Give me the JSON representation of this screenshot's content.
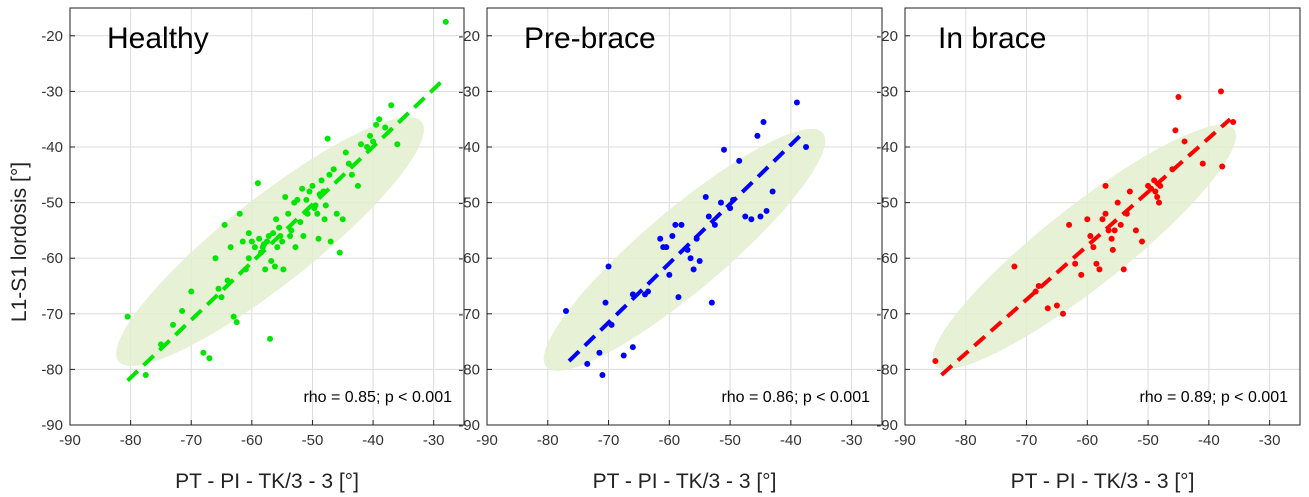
{
  "chart_data": [
    {
      "type": "scatter",
      "title": "Healthy",
      "xlabel": "PT - PI - TK/3 - 3 [°]",
      "ylabel": "L1-S1 lordosis [°]",
      "xlim": [
        -90,
        -25
      ],
      "ylim": [
        -90,
        -15
      ],
      "xticks": [
        -90,
        -80,
        -70,
        -60,
        -50,
        -40,
        -30
      ],
      "yticks": [
        -90,
        -80,
        -70,
        -60,
        -50,
        -40,
        -30,
        -20
      ],
      "grid": true,
      "annotation": "rho = 0.85; p < 0.001",
      "colors": {
        "points": "#00e600",
        "fit": "#00e600",
        "ellipse": "#e2efcf"
      },
      "fit_line": {
        "x": [
          -80.5,
          -28
        ],
        "y": [
          -82,
          -27.5
        ]
      },
      "ellipse": {
        "cx": -57,
        "cy": -57,
        "rx": 33,
        "ry": 7.5,
        "angle_deg": 41
      },
      "points": {
        "x": [
          -80.5,
          -77.5,
          -75,
          -73,
          -71.5,
          -70,
          -68,
          -67,
          -66,
          -65.5,
          -65,
          -64.5,
          -64,
          -63.5,
          -63,
          -62.5,
          -62,
          -61.5,
          -61,
          -60.5,
          -60.5,
          -60,
          -59.5,
          -59,
          -58.8,
          -58.5,
          -58.2,
          -58,
          -57.8,
          -57.5,
          -57.2,
          -57,
          -56.8,
          -56.5,
          -56.2,
          -56,
          -55.8,
          -55.5,
          -55.3,
          -55,
          -54.8,
          -54.5,
          -54,
          -53.7,
          -53.5,
          -53,
          -52.8,
          -52.5,
          -52,
          -51.7,
          -51.5,
          -51,
          -50.8,
          -50.5,
          -50,
          -49.7,
          -49.5,
          -49.2,
          -49,
          -48.8,
          -48.5,
          -48.2,
          -48,
          -47.8,
          -47.5,
          -47.2,
          -47,
          -46.5,
          -46,
          -45.5,
          -45,
          -44.5,
          -44,
          -43.5,
          -42.5,
          -42,
          -41,
          -40.5,
          -40,
          -39.5,
          -39,
          -38,
          -37,
          -36,
          -28
        ],
        "y": [
          -70.5,
          -81,
          -75.5,
          -72,
          -69.5,
          -66,
          -77,
          -78,
          -60,
          -65.5,
          -67,
          -54,
          -64,
          -58,
          -70.5,
          -71.5,
          -52,
          -57,
          -62,
          -60,
          -55.5,
          -57,
          -58,
          -46.5,
          -56.5,
          -59,
          -58,
          -57.5,
          -62,
          -57,
          -56,
          -74.5,
          -60.5,
          -55.5,
          -61.5,
          -53,
          -58,
          -54.5,
          -56,
          -57,
          -62,
          -49,
          -52,
          -56,
          -55,
          -50,
          -58,
          -49.5,
          -53.5,
          -47.5,
          -56,
          -49.5,
          -52,
          -48,
          -47,
          -51,
          -50.5,
          -52,
          -56.5,
          -48.5,
          -46,
          -48,
          -53,
          -50.5,
          -38.5,
          -45,
          -57,
          -44,
          -52,
          -59,
          -53,
          -41,
          -43,
          -45,
          -47,
          -39.5,
          -40,
          -38,
          -39,
          -36,
          -35,
          -36.5,
          -32.5,
          -39.5,
          -17.5
        ]
      }
    },
    {
      "type": "scatter",
      "title": "Pre-brace",
      "xlabel": "PT - PI - TK/3 - 3 [°]",
      "ylabel": "",
      "xlim": [
        -90,
        -25
      ],
      "ylim": [
        -90,
        -15
      ],
      "xticks": [
        -90,
        -80,
        -70,
        -60,
        -50,
        -40,
        -30
      ],
      "yticks": [
        -90,
        -80,
        -70,
        -60,
        -50,
        -40,
        -30,
        -20
      ],
      "grid": true,
      "annotation": "rho = 0.86; p < 0.001",
      "colors": {
        "points": "#0000ff",
        "fit": "#0000ff",
        "ellipse": "#e2efcf"
      },
      "fit_line": {
        "x": [
          -76.5,
          -38.5
        ],
        "y": [
          -78.5,
          -38
        ]
      },
      "ellipse": {
        "cx": -57.5,
        "cy": -58.5,
        "rx": 31,
        "ry": 7,
        "angle_deg": 43
      },
      "points": {
        "x": [
          -77,
          -73.5,
          -71.5,
          -71,
          -70.5,
          -70,
          -69.5,
          -67.5,
          -66,
          -66,
          -64,
          -63.5,
          -61.5,
          -61,
          -60.5,
          -60,
          -59.5,
          -59,
          -58.5,
          -58,
          -57,
          -56.5,
          -56,
          -55.5,
          -55,
          -54,
          -53.5,
          -53,
          -52.5,
          -51.5,
          -51,
          -50,
          -49.5,
          -48.5,
          -47.5,
          -46.5,
          -45.5,
          -45,
          -44.5,
          -44,
          -43,
          -39,
          -37.5
        ],
        "y": [
          -69.5,
          -79,
          -77,
          -81,
          -68,
          -61.5,
          -72,
          -77.5,
          -76,
          -66.5,
          -66.5,
          -66,
          -56.5,
          -58,
          -58,
          -63,
          -56,
          -54,
          -67,
          -54,
          -58.5,
          -60,
          -62,
          -56.5,
          -60.5,
          -49,
          -52.5,
          -68,
          -54,
          -50,
          -40.5,
          -51,
          -49.5,
          -42.5,
          -52.5,
          -53,
          -38,
          -52.5,
          -35.5,
          -51.5,
          -48,
          -32,
          -40
        ]
      }
    },
    {
      "type": "scatter",
      "title": "In brace",
      "xlabel": "PT - PI - TK/3 - 3 [°]",
      "ylabel": "",
      "xlim": [
        -90,
        -25
      ],
      "ylim": [
        -90,
        -15
      ],
      "xticks": [
        -90,
        -80,
        -70,
        -60,
        -50,
        -40,
        -30
      ],
      "yticks": [
        -90,
        -80,
        -70,
        -60,
        -50,
        -40,
        -30,
        -20
      ],
      "grid": true,
      "annotation": "rho = 0.89; p < 0.001",
      "colors": {
        "points": "#ff0000",
        "fit": "#ff0000",
        "ellipse": "#e2efcf"
      },
      "fit_line": {
        "x": [
          -84,
          -36.5
        ],
        "y": [
          -81,
          -35
        ]
      },
      "ellipse": {
        "cx": -60.5,
        "cy": -58,
        "rx": 32.5,
        "ry": 7,
        "angle_deg": 41
      },
      "points": {
        "x": [
          -85,
          -72,
          -68.5,
          -68,
          -66.5,
          -65,
          -64,
          -63,
          -62,
          -61,
          -60,
          -59.5,
          -59,
          -58.5,
          -58,
          -57.5,
          -57,
          -57,
          -56.5,
          -56,
          -55.8,
          -55.5,
          -55,
          -54.5,
          -54,
          -53.5,
          -53,
          -52,
          -51,
          -50,
          -49.5,
          -49,
          -48.8,
          -48.5,
          -48.2,
          -48,
          -46,
          -45.5,
          -45,
          -44,
          -41,
          -38,
          -37.8,
          -36
        ],
        "y": [
          -78.5,
          -61.5,
          -66,
          -65,
          -69,
          -68.5,
          -70,
          -54,
          -61,
          -63,
          -53,
          -56,
          -58,
          -61,
          -62,
          -53,
          -47,
          -52,
          -55,
          -56.5,
          -58.5,
          -55,
          -50,
          -54,
          -62,
          -52,
          -48,
          -55,
          -57,
          -47,
          -47.5,
          -46,
          -48,
          -49,
          -50,
          -47,
          -44,
          -37,
          -31,
          -39,
          -43,
          -30,
          -43.5,
          -35.5
        ]
      }
    }
  ]
}
